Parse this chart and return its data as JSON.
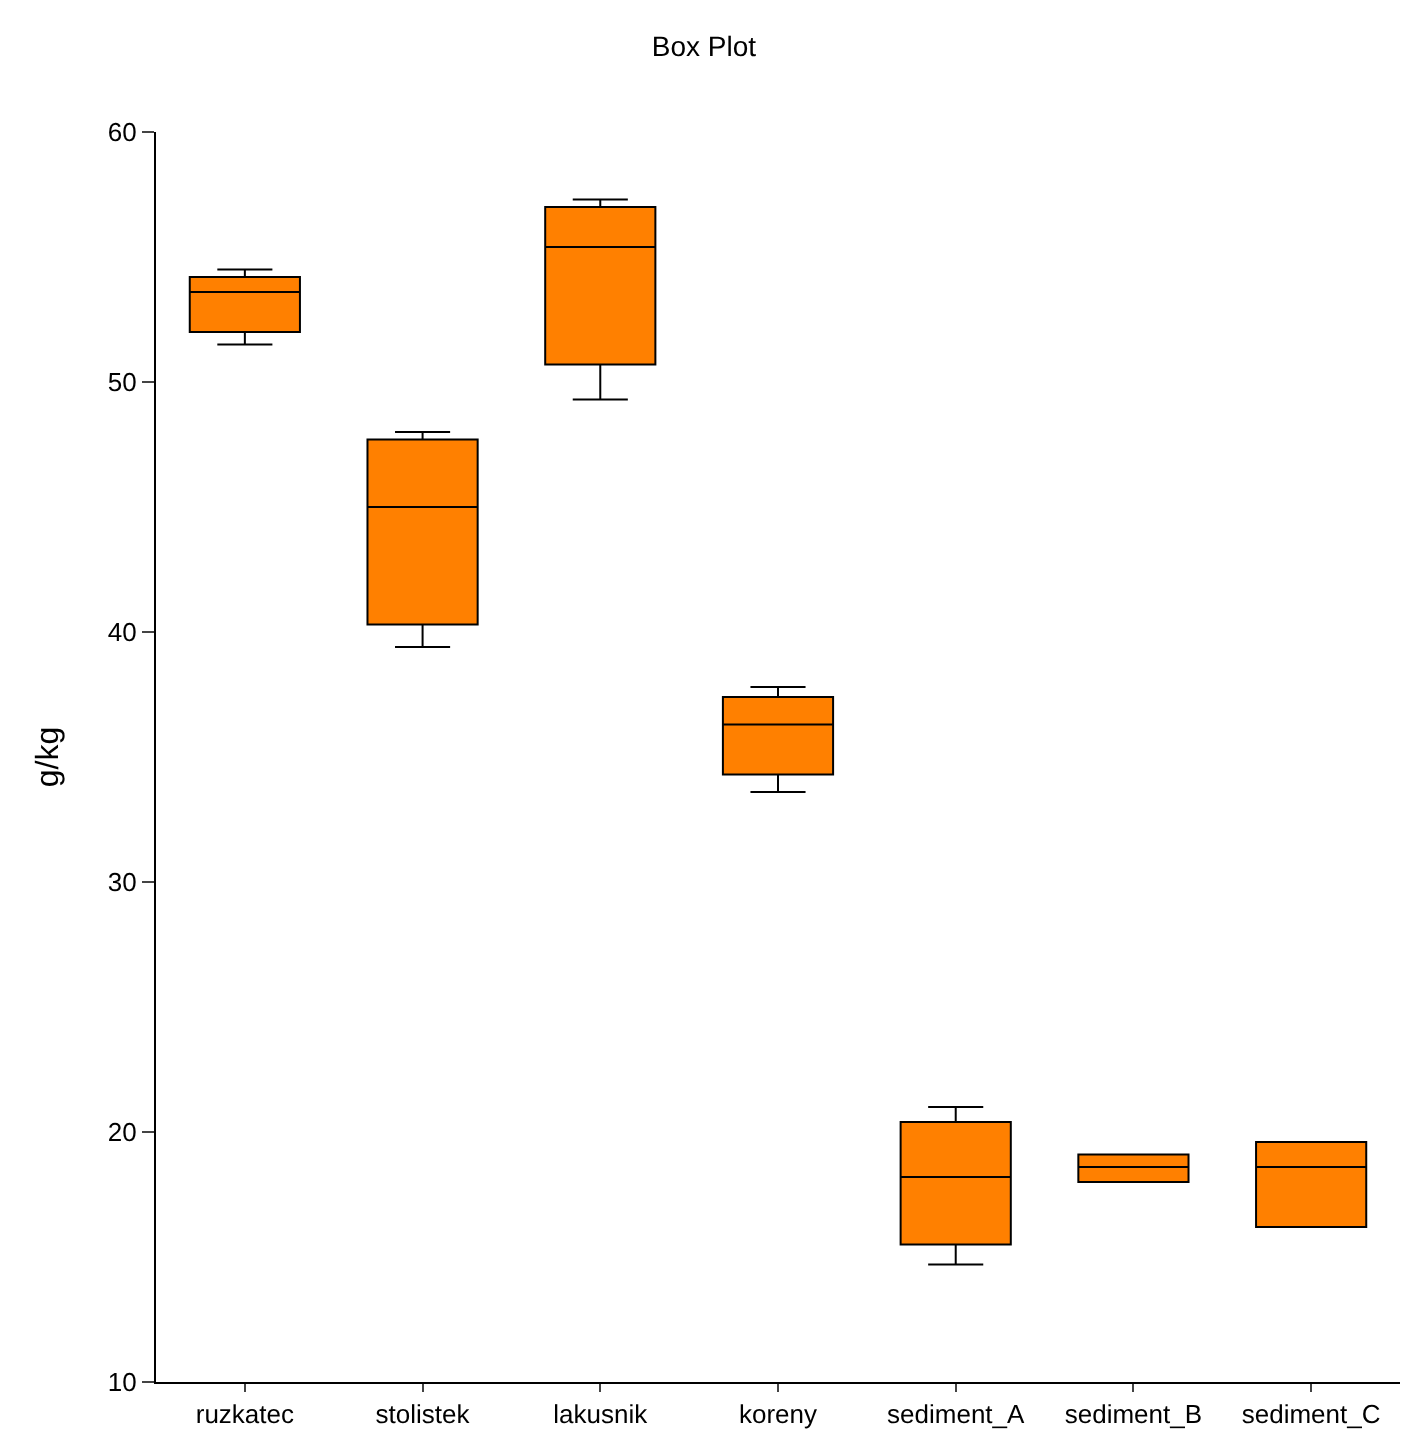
{
  "chart_data": {
    "type": "box",
    "title": "Box Plot",
    "ylabel": "g/kg",
    "categories": [
      "ruzkatec",
      "stolistek",
      "lakusnik",
      "koreny",
      "sediment_A",
      "sediment_B",
      "sediment_C"
    ],
    "boxes": [
      {
        "low": 51.5,
        "q1": 52.0,
        "median": 53.6,
        "q3": 54.2,
        "high": 54.5
      },
      {
        "low": 39.4,
        "q1": 40.3,
        "median": 45.0,
        "q3": 47.7,
        "high": 48.0
      },
      {
        "low": 49.3,
        "q1": 50.7,
        "median": 55.4,
        "q3": 57.0,
        "high": 57.3
      },
      {
        "low": 33.6,
        "q1": 34.3,
        "median": 36.3,
        "q3": 37.4,
        "high": 37.8
      },
      {
        "low": 14.7,
        "q1": 15.5,
        "median": 18.2,
        "q3": 20.4,
        "high": 21.0
      },
      {
        "low": 18.0,
        "q1": 18.0,
        "median": 18.6,
        "q3": 19.1,
        "high": 19.1
      },
      {
        "low": 16.2,
        "q1": 16.2,
        "median": 18.6,
        "q3": 19.6,
        "high": 19.6
      }
    ],
    "color": "#ff8000",
    "ylim": [
      10,
      60
    ],
    "yticks": [
      10,
      20,
      30,
      40,
      50,
      60
    ]
  }
}
